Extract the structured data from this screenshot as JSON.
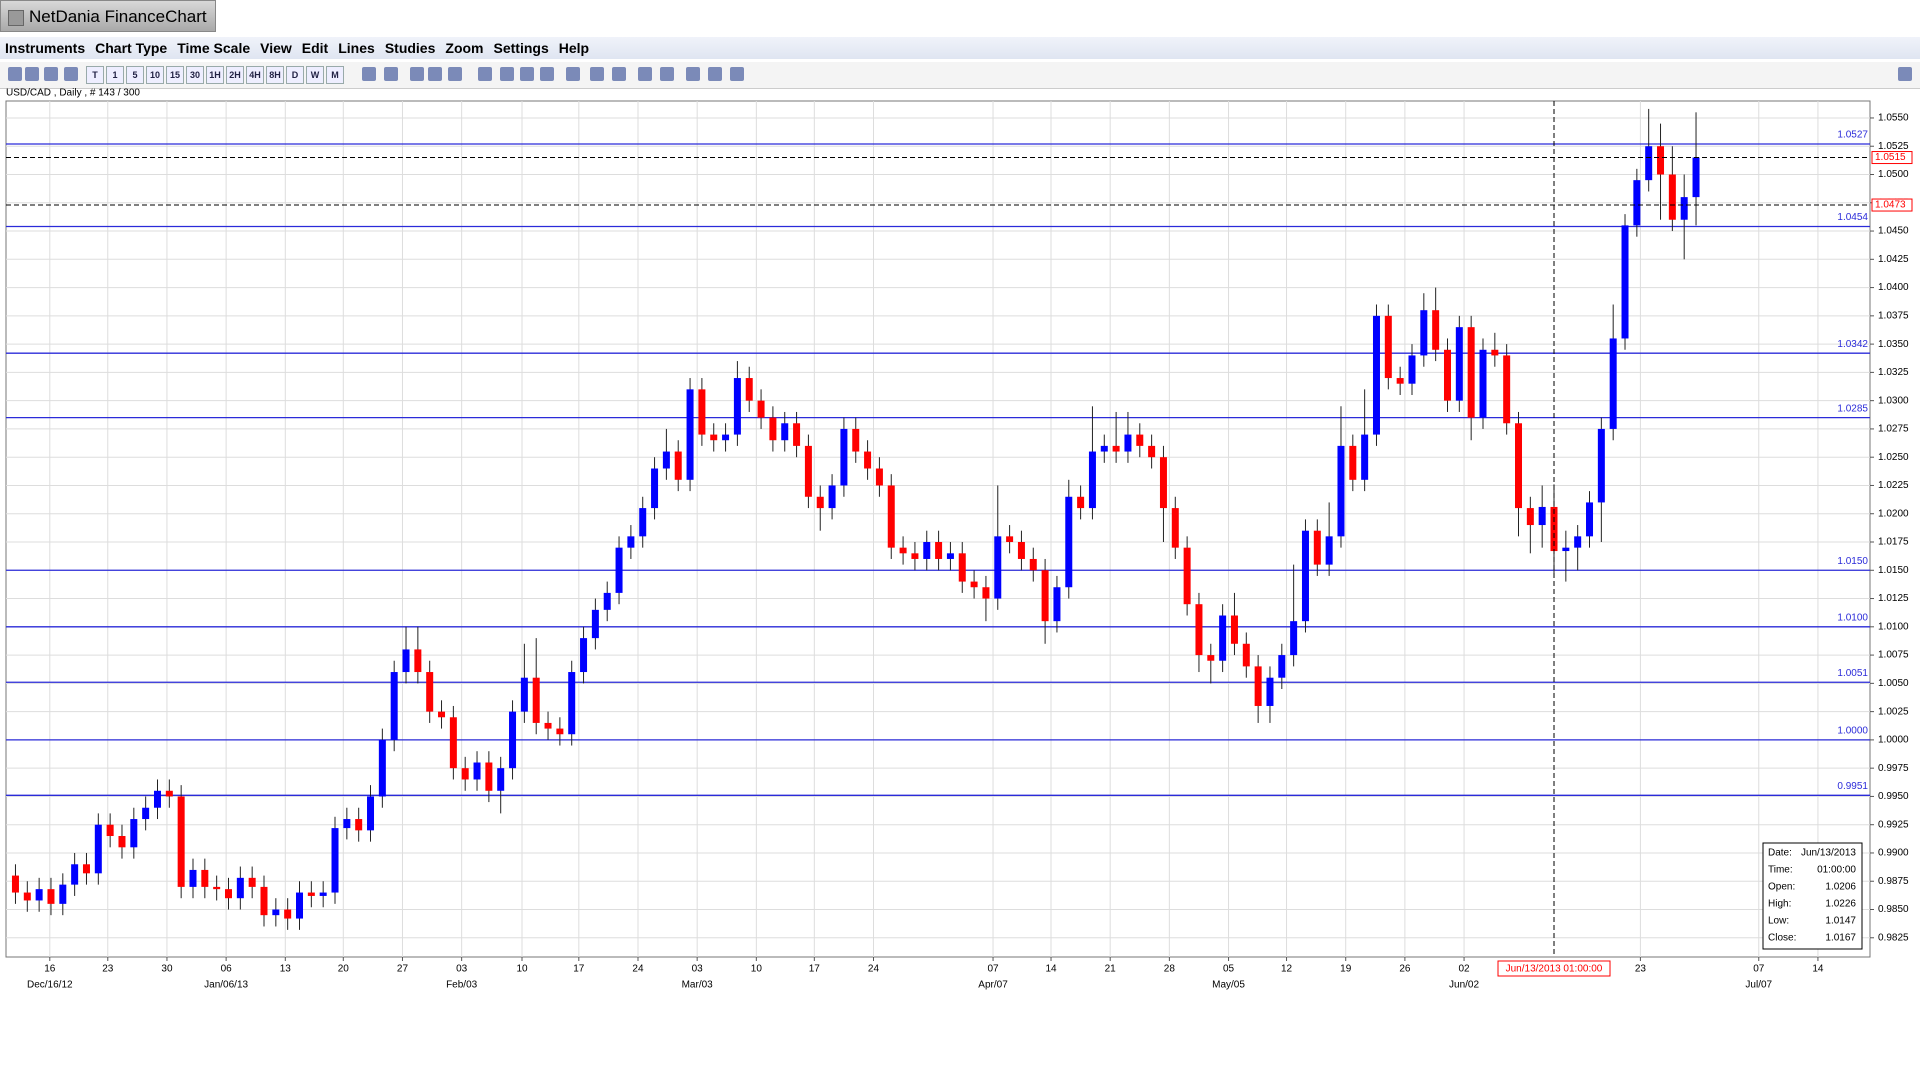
{
  "window": {
    "title": "NetDania FinanceChart",
    "menu": [
      "Instruments",
      "Chart Type",
      "Time Scale",
      "View",
      "Edit",
      "Lines",
      "Studies",
      "Zoom",
      "Settings",
      "Help"
    ],
    "toolbar": [
      "T",
      "1",
      "5",
      "10",
      "15",
      "30",
      "1H",
      "2H",
      "4H",
      "8H",
      "D",
      "W",
      "M"
    ]
  },
  "chart_data": {
    "type": "candlestick",
    "title": "USD/CAD , Daily , # 143 / 300",
    "up_color": "#0000ff",
    "down_color": "#ff0000",
    "grid": true,
    "xlim": [
      -0.8,
      156.7
    ],
    "ylim": [
      0.9808,
      1.0565
    ],
    "yticks": [
      0.9825,
      {
        "value": 0.985,
        "label": "0.9850"
      },
      0.9875,
      {
        "value": 0.99,
        "label": "0.9900"
      },
      0.9925,
      {
        "value": 0.995,
        "label": "0.9950"
      },
      0.9975,
      {
        "value": 1,
        "label": "1.0000"
      },
      1.0025,
      {
        "value": 1.005,
        "label": "1.0050"
      },
      1.0075,
      {
        "value": 1.01,
        "label": "1.0100"
      },
      1.0125,
      {
        "value": 1.015,
        "label": "1.0150"
      },
      1.0175,
      {
        "value": 1.02,
        "label": "1.0200"
      },
      1.0225,
      {
        "value": 1.025,
        "label": "1.0250"
      },
      1.0275,
      {
        "value": 1.03,
        "label": "1.0300"
      },
      1.0325,
      {
        "value": 1.035,
        "label": "1.0350"
      },
      1.0375,
      {
        "value": 1.04,
        "label": "1.0400"
      },
      1.0425,
      {
        "value": 1.045,
        "label": "1.0450"
      },
      1.0475,
      {
        "value": 1.05,
        "label": "1.0500"
      },
      1.0525,
      {
        "value": 1.055,
        "label": "1.0550"
      }
    ],
    "xticks": [
      {
        "value": 2.9,
        "label": "16"
      },
      {
        "value": 7.8,
        "label": "23"
      },
      {
        "value": 12.8,
        "label": "30"
      },
      {
        "value": 17.8,
        "label": "06"
      },
      {
        "value": 22.8,
        "label": "13"
      },
      {
        "value": 27.7,
        "label": "20"
      },
      {
        "value": 32.7,
        "label": "27"
      },
      {
        "value": 37.7,
        "label": "03"
      },
      {
        "value": 42.8,
        "label": "10"
      },
      {
        "value": 47.6,
        "label": "17"
      },
      {
        "value": 52.6,
        "label": "24"
      },
      {
        "value": 57.6,
        "label": "03"
      },
      {
        "value": 62.6,
        "label": "10"
      },
      {
        "value": 67.5,
        "label": "17"
      },
      {
        "value": 72.5,
        "label": "24"
      },
      {
        "value": 82.6,
        "label": "07"
      },
      {
        "value": 87.5,
        "label": "14"
      },
      {
        "value": 92.5,
        "label": "21"
      },
      {
        "value": 97.5,
        "label": "28"
      },
      {
        "value": 102.5,
        "label": "05"
      },
      {
        "value": 107.4,
        "label": "12"
      },
      {
        "value": 112.4,
        "label": "19"
      },
      {
        "value": 117.4,
        "label": "26"
      },
      {
        "value": 122.4,
        "label": "02"
      },
      {
        "value": 137.3,
        "label": "23"
      },
      {
        "value": 147.3,
        "label": "07"
      },
      {
        "value": 152.3,
        "label": "14"
      }
    ],
    "month_ticks": [
      {
        "value": 2.9,
        "label": "Dec/16/12"
      },
      {
        "value": 17.8,
        "label": "Jan/06/13"
      },
      {
        "value": 37.7,
        "label": "Feb/03"
      },
      {
        "value": 57.6,
        "label": "Mar/03"
      },
      {
        "value": 82.6,
        "label": "Apr/07"
      },
      {
        "value": 102.5,
        "label": "May/05"
      },
      {
        "value": 122.4,
        "label": "Jun/02"
      },
      {
        "value": 147.3,
        "label": "Jul/07"
      }
    ],
    "levels": [
      1.0527,
      1.0454,
      1.0342,
      1.0285,
      {
        "value": 1.015,
        "label": "1.0150"
      },
      {
        "value": 1.01,
        "label": "1.0100"
      },
      1.0051,
      {
        "value": 1,
        "label": "1.0000"
      },
      0.9951
    ],
    "last_price": 1.0515,
    "crosshair": {
      "x": 130,
      "x_label": "Jun/13/2013 01:00:00",
      "y": 1.0473
    },
    "candles": [
      [
        0.988,
        0.989,
        0.9855,
        0.9865
      ],
      [
        0.9865,
        0.9875,
        0.9848,
        0.9858
      ],
      [
        0.9858,
        0.9878,
        0.9848,
        0.9868
      ],
      [
        0.9868,
        0.9878,
        0.9845,
        0.9855
      ],
      [
        0.9855,
        0.9882,
        0.9845,
        0.9872
      ],
      [
        0.9872,
        0.99,
        0.9862,
        0.989
      ],
      [
        0.989,
        0.99,
        0.9872,
        0.9882
      ],
      [
        0.9882,
        0.9935,
        0.9872,
        0.9925
      ],
      [
        0.9925,
        0.9935,
        0.9905,
        0.9915
      ],
      [
        0.9915,
        0.9925,
        0.9895,
        0.9905
      ],
      [
        0.9905,
        0.994,
        0.9895,
        0.993
      ],
      [
        0.993,
        0.995,
        0.992,
        0.994
      ],
      [
        0.994,
        0.9965,
        0.993,
        0.9955
      ],
      [
        0.9955,
        0.9965,
        0.994,
        0.995
      ],
      [
        0.995,
        0.996,
        0.986,
        0.987
      ],
      [
        0.987,
        0.9895,
        0.986,
        0.9885
      ],
      [
        0.9885,
        0.9895,
        0.986,
        0.987
      ],
      [
        0.987,
        0.988,
        0.9858,
        0.9868
      ],
      [
        0.9868,
        0.9878,
        0.985,
        0.986
      ],
      [
        0.986,
        0.9888,
        0.985,
        0.9878
      ],
      [
        0.9878,
        0.9888,
        0.986,
        0.987
      ],
      [
        0.987,
        0.988,
        0.9835,
        0.9845
      ],
      [
        0.9845,
        0.986,
        0.9835,
        0.985
      ],
      [
        0.985,
        0.986,
        0.9832,
        0.9842
      ],
      [
        0.9842,
        0.9875,
        0.9832,
        0.9865
      ],
      [
        0.9865,
        0.9875,
        0.9852,
        0.9862
      ],
      [
        0.9862,
        0.9875,
        0.9852,
        0.9865
      ],
      [
        0.9865,
        0.9932,
        0.9855,
        0.9922
      ],
      [
        0.9922,
        0.994,
        0.9912,
        0.993
      ],
      [
        0.993,
        0.994,
        0.991,
        0.992
      ],
      [
        0.992,
        0.996,
        0.991,
        0.995
      ],
      [
        0.995,
        1.001,
        0.994,
        1.0
      ],
      [
        1.0,
        1.007,
        0.999,
        1.006
      ],
      [
        1.006,
        1.01,
        1.005,
        1.008
      ],
      [
        1.008,
        1.01,
        1.005,
        1.006
      ],
      [
        1.006,
        1.007,
        1.0015,
        1.0025
      ],
      [
        1.0025,
        1.0035,
        1.001,
        1.002
      ],
      [
        1.002,
        1.003,
        0.9965,
        0.9975
      ],
      [
        0.9975,
        0.9985,
        0.9955,
        0.9965
      ],
      [
        0.9965,
        0.999,
        0.9955,
        0.998
      ],
      [
        0.998,
        0.999,
        0.9945,
        0.9955
      ],
      [
        0.9955,
        0.9985,
        0.9935,
        0.9975
      ],
      [
        0.9975,
        1.0035,
        0.9965,
        1.0025
      ],
      [
        1.0025,
        1.0085,
        1.0015,
        1.0055
      ],
      [
        1.0055,
        1.009,
        1.0005,
        1.0015
      ],
      [
        1.0015,
        1.0025,
        1.0,
        1.001
      ],
      [
        1.001,
        1.002,
        0.9995,
        1.0005
      ],
      [
        1.0005,
        1.007,
        0.9995,
        1.006
      ],
      [
        1.006,
        1.01,
        1.005,
        1.009
      ],
      [
        1.009,
        1.0125,
        1.008,
        1.0115
      ],
      [
        1.0115,
        1.014,
        1.0105,
        1.013
      ],
      [
        1.013,
        1.018,
        1.012,
        1.017
      ],
      [
        1.017,
        1.019,
        1.016,
        1.018
      ],
      [
        1.018,
        1.0215,
        1.017,
        1.0205
      ],
      [
        1.0205,
        1.025,
        1.0195,
        1.024
      ],
      [
        1.024,
        1.0275,
        1.023,
        1.0255
      ],
      [
        1.0255,
        1.0265,
        1.022,
        1.023
      ],
      [
        1.023,
        1.032,
        1.022,
        1.031
      ],
      [
        1.031,
        1.032,
        1.026,
        1.027
      ],
      [
        1.027,
        1.028,
        1.0255,
        1.0265
      ],
      [
        1.0265,
        1.028,
        1.0255,
        1.027
      ],
      [
        1.027,
        1.0335,
        1.026,
        1.032
      ],
      [
        1.032,
        1.033,
        1.029,
        1.03
      ],
      [
        1.03,
        1.031,
        1.0275,
        1.0285
      ],
      [
        1.0285,
        1.0295,
        1.0255,
        1.0265
      ],
      [
        1.0265,
        1.029,
        1.0255,
        1.028
      ],
      [
        1.028,
        1.029,
        1.025,
        1.026
      ],
      [
        1.026,
        1.027,
        1.0205,
        1.0215
      ],
      [
        1.0215,
        1.0225,
        1.0185,
        1.0205
      ],
      [
        1.0205,
        1.0235,
        1.0195,
        1.0225
      ],
      [
        1.0225,
        1.0285,
        1.0215,
        1.0275
      ],
      [
        1.0275,
        1.0285,
        1.0245,
        1.0255
      ],
      [
        1.0255,
        1.0265,
        1.023,
        1.024
      ],
      [
        1.024,
        1.025,
        1.0215,
        1.0225
      ],
      [
        1.0225,
        1.0235,
        1.016,
        1.017
      ],
      [
        1.017,
        1.018,
        1.0155,
        1.0165
      ],
      [
        1.0165,
        1.0175,
        1.015,
        1.016
      ],
      [
        1.016,
        1.0185,
        1.015,
        1.0175
      ],
      [
        1.0175,
        1.0185,
        1.015,
        1.016
      ],
      [
        1.016,
        1.0175,
        1.015,
        1.0165
      ],
      [
        1.0165,
        1.0175,
        1.013,
        1.014
      ],
      [
        1.014,
        1.015,
        1.0125,
        1.0135
      ],
      [
        1.0135,
        1.0145,
        1.0105,
        1.0125
      ],
      [
        1.0125,
        1.0225,
        1.0115,
        1.018
      ],
      [
        1.018,
        1.019,
        1.0165,
        1.0175
      ],
      [
        1.0175,
        1.0185,
        1.015,
        1.016
      ],
      [
        1.016,
        1.017,
        1.014,
        1.015
      ],
      [
        1.015,
        1.016,
        1.0085,
        1.0105
      ],
      [
        1.0105,
        1.0145,
        1.0095,
        1.0135
      ],
      [
        1.0135,
        1.023,
        1.0125,
        1.0215
      ],
      [
        1.0215,
        1.0225,
        1.0195,
        1.0205
      ],
      [
        1.0205,
        1.0295,
        1.0195,
        1.0255
      ],
      [
        1.0255,
        1.027,
        1.0245,
        1.026
      ],
      [
        1.026,
        1.029,
        1.0245,
        1.0255
      ],
      [
        1.0255,
        1.029,
        1.0245,
        1.027
      ],
      [
        1.027,
        1.028,
        1.025,
        1.026
      ],
      [
        1.026,
        1.027,
        1.024,
        1.025
      ],
      [
        1.025,
        1.026,
        1.0175,
        1.0205
      ],
      [
        1.0205,
        1.0215,
        1.016,
        1.017
      ],
      [
        1.017,
        1.018,
        1.011,
        1.012
      ],
      [
        1.012,
        1.013,
        1.006,
        1.0075
      ],
      [
        1.0075,
        1.0085,
        1.005,
        1.007
      ],
      [
        1.007,
        1.012,
        1.006,
        1.011
      ],
      [
        1.011,
        1.013,
        1.0075,
        1.0085
      ],
      [
        1.0085,
        1.0095,
        1.0055,
        1.0065
      ],
      [
        1.0065,
        1.0075,
        1.0015,
        1.003
      ],
      [
        1.003,
        1.0065,
        1.0015,
        1.0055
      ],
      [
        1.0055,
        1.0085,
        1.0045,
        1.0075
      ],
      [
        1.0075,
        1.0155,
        1.0065,
        1.0105
      ],
      [
        1.0105,
        1.0195,
        1.0095,
        1.0185
      ],
      [
        1.0185,
        1.0195,
        1.0145,
        1.0155
      ],
      [
        1.0155,
        1.021,
        1.0145,
        1.018
      ],
      [
        1.018,
        1.0295,
        1.017,
        1.026
      ],
      [
        1.026,
        1.027,
        1.022,
        1.023
      ],
      [
        1.023,
        1.031,
        1.022,
        1.027
      ],
      [
        1.027,
        1.0385,
        1.026,
        1.0375
      ],
      [
        1.0375,
        1.0385,
        1.031,
        1.032
      ],
      [
        1.032,
        1.033,
        1.0305,
        1.0315
      ],
      [
        1.0315,
        1.035,
        1.0305,
        1.034
      ],
      [
        1.034,
        1.0395,
        1.033,
        1.038
      ],
      [
        1.038,
        1.04,
        1.0335,
        1.0345
      ],
      [
        1.0345,
        1.0355,
        1.029,
        1.03
      ],
      [
        1.03,
        1.0375,
        1.029,
        1.0365
      ],
      [
        1.0365,
        1.0375,
        1.0265,
        1.0285
      ],
      [
        1.0285,
        1.0355,
        1.0275,
        1.0345
      ],
      [
        1.0345,
        1.036,
        1.033,
        1.034
      ],
      [
        1.034,
        1.035,
        1.027,
        1.028
      ],
      [
        1.028,
        1.029,
        1.018,
        1.0205
      ],
      [
        1.0205,
        1.0215,
        1.0165,
        1.019
      ],
      [
        1.019,
        1.0225,
        1.017,
        1.0206
      ],
      [
        1.0206,
        1.0226,
        1.0147,
        1.0167
      ],
      [
        1.0167,
        1.0185,
        1.014,
        1.017
      ],
      [
        1.017,
        1.019,
        1.015,
        1.018
      ],
      [
        1.018,
        1.022,
        1.017,
        1.021
      ],
      [
        1.021,
        1.0285,
        1.0175,
        1.0275
      ],
      [
        1.0275,
        1.0385,
        1.0265,
        1.0355
      ],
      [
        1.0355,
        1.0465,
        1.0345,
        1.0455
      ],
      [
        1.0455,
        1.0505,
        1.0445,
        1.0495
      ],
      [
        1.0495,
        1.0558,
        1.0485,
        1.0525
      ],
      [
        1.0525,
        1.0545,
        1.046,
        1.05
      ],
      [
        1.05,
        1.0525,
        1.045,
        1.046
      ],
      [
        1.046,
        1.05,
        1.0425,
        1.048
      ],
      [
        1.048,
        1.0555,
        1.0455,
        1.0515
      ]
    ]
  },
  "info_box": [
    [
      "Date:",
      "Jun/13/2013"
    ],
    [
      "Time:",
      "01:00:00"
    ],
    [
      "Open:",
      "1.0206"
    ],
    [
      "High:",
      "1.0226"
    ],
    [
      "Low:",
      "1.0147"
    ],
    [
      "Close:",
      "1.0167"
    ]
  ]
}
